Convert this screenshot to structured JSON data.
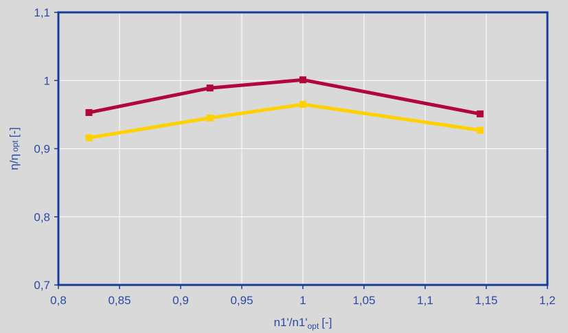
{
  "chart_data": {
    "type": "line",
    "title": "",
    "xlabel_main": "n1'/n1'",
    "xlabel_sub": "opt",
    "xlabel_unit": "[-]",
    "ylabel_main": "η/η",
    "ylabel_sub": "opt",
    "ylabel_unit": "[-]",
    "xlim": [
      0.8,
      1.2
    ],
    "ylim": [
      0.7,
      1.1
    ],
    "x_ticks": [
      0.8,
      0.85,
      0.9,
      0.95,
      1.0,
      1.05,
      1.1,
      1.15,
      1.2
    ],
    "x_tick_labels": [
      "0,8",
      "0,85",
      "0,9",
      "0,95",
      "1",
      "1,05",
      "1,1",
      "1,15",
      "1,2"
    ],
    "y_ticks": [
      0.7,
      0.8,
      0.9,
      1.0,
      1.1
    ],
    "y_tick_labels": [
      "0,7",
      "0,8",
      "0,9",
      "1",
      "1,1"
    ],
    "grid": true,
    "legend": "none",
    "colors": {
      "background": "#d9d9d9",
      "plot_background": "#d9d9d9",
      "frame": "#1a3a9a",
      "grid": "#ffffff",
      "text": "#2b4aa5"
    },
    "series": [
      {
        "color": "#b0063a",
        "x": [
          0.825,
          0.924,
          1.0,
          1.145
        ],
        "y": [
          0.953,
          0.989,
          1.001,
          0.951
        ]
      },
      {
        "color": "#ffd100",
        "x": [
          0.825,
          0.924,
          1.0,
          1.145
        ],
        "y": [
          0.916,
          0.945,
          0.965,
          0.927
        ]
      }
    ]
  }
}
